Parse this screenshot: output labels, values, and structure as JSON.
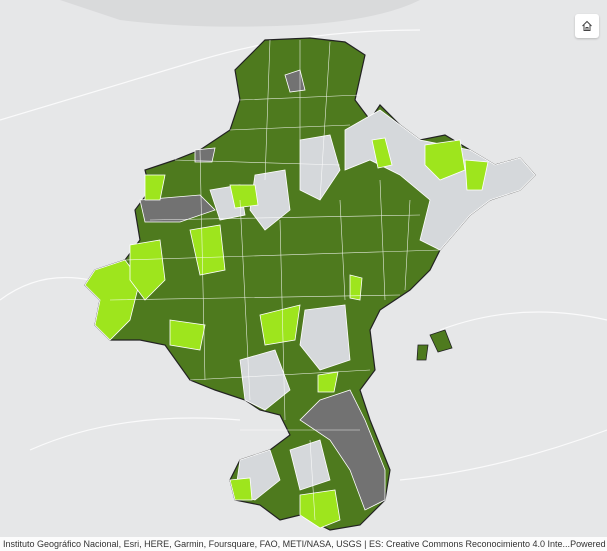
{
  "map": {
    "colors": {
      "background": "#e6e7e8",
      "dark_green": "#4e7a1e",
      "light_green": "#9ee51d",
      "dark_grey": "#727272",
      "light_grey": "#d5d8db",
      "boundary": "#ffffff"
    }
  },
  "controls": {
    "home_icon": "home-icon"
  },
  "attribution": {
    "text": "Instituto Geográfico Nacional, Esri, HERE, Garmin, Foursquare, FAO, METI/NASA, USGS | ES: Creative Commons Reconocimiento 4.0 Inte...",
    "powered_by": "Powered by Esri"
  }
}
